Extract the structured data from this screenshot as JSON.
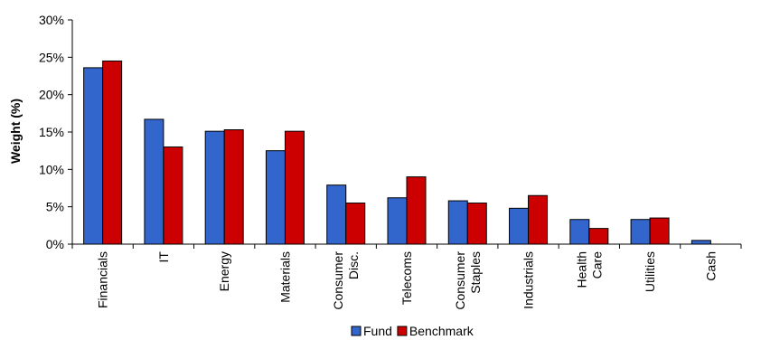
{
  "chart_data": {
    "type": "bar",
    "ylabel": "Weight (%)",
    "ylim": [
      0,
      30
    ],
    "yticks": [
      0,
      5,
      10,
      15,
      20,
      25,
      30
    ],
    "ytick_suffix": "%",
    "grid": false,
    "legend": "bottom",
    "categories": [
      [
        "Financials"
      ],
      [
        "IT"
      ],
      [
        "Energy"
      ],
      [
        "Materials"
      ],
      [
        "Consumer",
        "Disc."
      ],
      [
        "Telecoms"
      ],
      [
        "Consumer",
        "Staples"
      ],
      [
        "Industrials"
      ],
      [
        "Health",
        "Care"
      ],
      [
        "Utilities"
      ],
      [
        "Cash"
      ]
    ],
    "series": [
      {
        "name": "Fund",
        "color": "#3366cc",
        "values": [
          23.6,
          16.7,
          15.1,
          12.5,
          7.9,
          6.2,
          5.8,
          4.8,
          3.3,
          3.3,
          0.5
        ]
      },
      {
        "name": "Benchmark",
        "color": "#cc0000",
        "values": [
          24.5,
          13.0,
          15.3,
          15.1,
          5.5,
          9.0,
          5.5,
          6.5,
          2.1,
          3.5,
          0.0
        ]
      }
    ]
  }
}
